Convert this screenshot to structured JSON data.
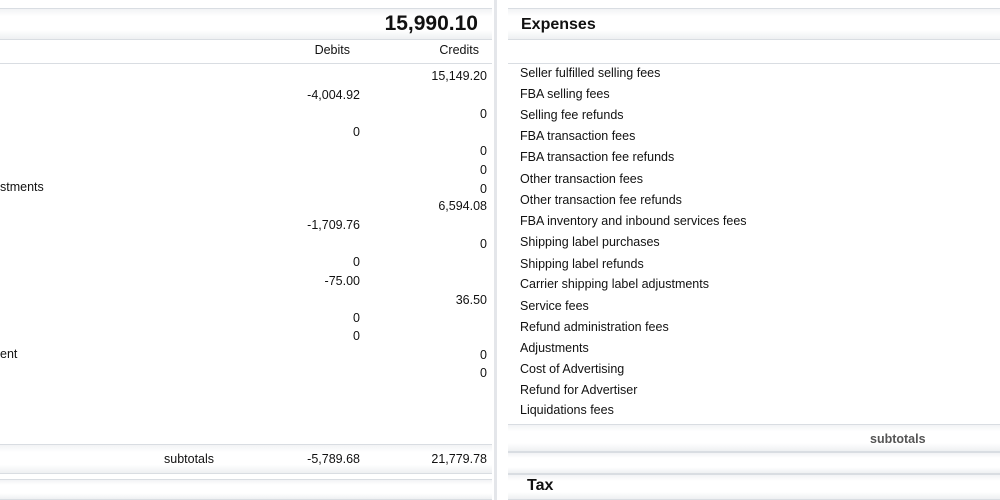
{
  "income": {
    "total": "15,990.10",
    "debits_header": "Debits",
    "credits_header": "Credits",
    "rows": [
      {
        "label": "",
        "debit": "",
        "credit": "15,149.20"
      },
      {
        "label": "",
        "debit": "-4,004.92",
        "credit": ""
      },
      {
        "label": "",
        "debit": "",
        "credit": "0"
      },
      {
        "label": "",
        "debit": "0",
        "credit": ""
      },
      {
        "label": "",
        "debit": "",
        "credit": "0"
      },
      {
        "label": "",
        "debit": "",
        "credit": "0"
      },
      {
        "label": "stments",
        "debit": "",
        "credit": "0"
      },
      {
        "label": "",
        "debit": "",
        "credit": "6,594.08"
      },
      {
        "label": "",
        "debit": "-1,709.76",
        "credit": ""
      },
      {
        "label": "",
        "debit": "",
        "credit": "0"
      },
      {
        "label": "",
        "debit": "0",
        "credit": ""
      },
      {
        "label": "",
        "debit": "-75.00",
        "credit": ""
      },
      {
        "label": "",
        "debit": "",
        "credit": "36.50"
      },
      {
        "label": "",
        "debit": "0",
        "credit": ""
      },
      {
        "label": "",
        "debit": "0",
        "credit": ""
      },
      {
        "label": "ent",
        "debit": "",
        "credit": "0"
      },
      {
        "label": "",
        "debit": "",
        "credit": "0"
      }
    ],
    "subtotals_label": "subtotals",
    "subtotal_debits": "-5,789.68",
    "subtotal_credits": "21,779.78"
  },
  "expenses": {
    "title": "Expenses",
    "items": [
      "Seller fulfilled selling fees",
      "FBA selling fees",
      "Selling fee refunds",
      "FBA transaction fees",
      "FBA transaction fee refunds",
      "Other transaction fees",
      "Other transaction fee refunds",
      "FBA inventory and inbound services fees",
      "Shipping label purchases",
      "Shipping label refunds",
      "Carrier shipping label adjustments",
      "Service fees",
      "Refund administration fees",
      "Adjustments",
      "Cost of Advertising",
      "Refund for Advertiser",
      "Liquidations fees"
    ],
    "subtotals_label": "subtotals"
  },
  "tax": {
    "title": "Tax"
  }
}
